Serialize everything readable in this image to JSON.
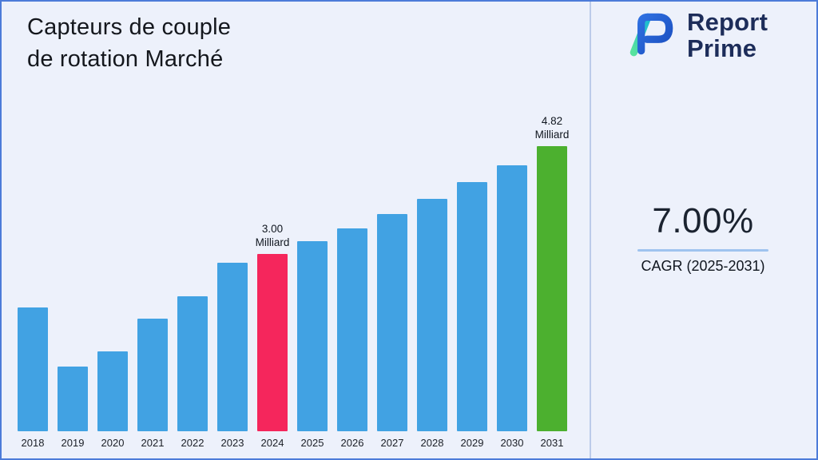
{
  "page": {
    "title_line1": "Capteurs de couple",
    "title_line2": "de rotation Marché"
  },
  "brand": {
    "line1": "Report",
    "line2": "Prime"
  },
  "cagr": {
    "value": "7.00%",
    "label": "CAGR (2025-2031)"
  },
  "colors": {
    "bar_default": "#41a2e3",
    "bar_highlight_2024": "#f5265c",
    "bar_highlight_2031": "#4cb02f",
    "underline_accent": "#9fc3ef",
    "brand_navy": "#1d2d5a"
  },
  "chart_data": {
    "type": "bar",
    "title": "Capteurs de couple de rotation Marché",
    "unit": "Milliard",
    "categories": [
      "2018",
      "2019",
      "2020",
      "2021",
      "2022",
      "2023",
      "2024",
      "2025",
      "2026",
      "2027",
      "2028",
      "2029",
      "2030",
      "2031"
    ],
    "values": [
      2.1,
      1.1,
      1.35,
      1.9,
      2.28,
      2.85,
      3.0,
      3.21,
      3.43,
      3.67,
      3.93,
      4.21,
      4.5,
      4.82
    ],
    "bar_labels": {
      "2024": [
        "3.00",
        "Milliard"
      ],
      "2031": [
        "4.82",
        "Milliard"
      ]
    },
    "bar_colors": {
      "2024": "#f5265c",
      "2031": "#4cb02f"
    },
    "xlabel": "",
    "ylabel": "",
    "ylim": [
      0,
      5.2
    ],
    "grid": false,
    "legend": "none"
  }
}
